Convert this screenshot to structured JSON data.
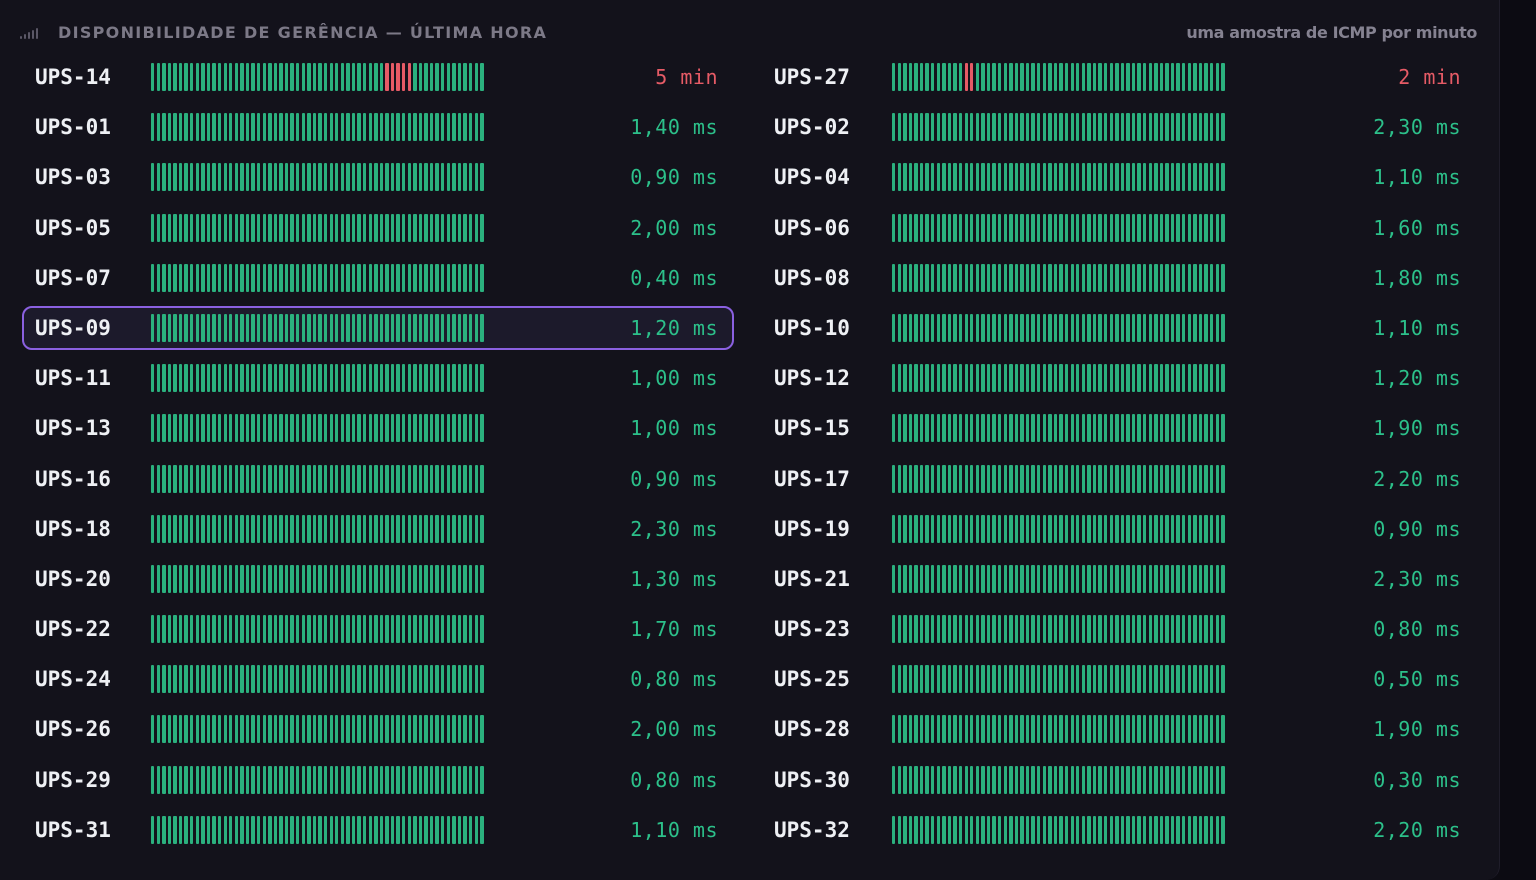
{
  "header": {
    "title": "DISPONIBILIDADE DE GERÊNCIA — ÚLTIMA HORA",
    "subtitle": "uma amostra de ICMP por minuto",
    "icon": "signal-bars-icon"
  },
  "colors": {
    "up": "#2bb07e",
    "down": "#e65b66",
    "selected_border": "#8a60e0"
  },
  "samples_per_row": 60,
  "selected": "UPS-09",
  "columns": [
    [
      {
        "name": "UPS-14",
        "value": "5 min",
        "status": "down",
        "down_samples": [
          42,
          43,
          44,
          45,
          46
        ]
      },
      {
        "name": "UPS-01",
        "value": "1,40 ms",
        "status": "up",
        "down_samples": []
      },
      {
        "name": "UPS-03",
        "value": "0,90 ms",
        "status": "up",
        "down_samples": []
      },
      {
        "name": "UPS-05",
        "value": "2,00 ms",
        "status": "up",
        "down_samples": []
      },
      {
        "name": "UPS-07",
        "value": "0,40 ms",
        "status": "up",
        "down_samples": []
      },
      {
        "name": "UPS-09",
        "value": "1,20 ms",
        "status": "up",
        "down_samples": []
      },
      {
        "name": "UPS-11",
        "value": "1,00 ms",
        "status": "up",
        "down_samples": []
      },
      {
        "name": "UPS-13",
        "value": "1,00 ms",
        "status": "up",
        "down_samples": []
      },
      {
        "name": "UPS-16",
        "value": "0,90 ms",
        "status": "up",
        "down_samples": []
      },
      {
        "name": "UPS-18",
        "value": "2,30 ms",
        "status": "up",
        "down_samples": []
      },
      {
        "name": "UPS-20",
        "value": "1,30 ms",
        "status": "up",
        "down_samples": []
      },
      {
        "name": "UPS-22",
        "value": "1,70 ms",
        "status": "up",
        "down_samples": []
      },
      {
        "name": "UPS-24",
        "value": "0,80 ms",
        "status": "up",
        "down_samples": []
      },
      {
        "name": "UPS-26",
        "value": "2,00 ms",
        "status": "up",
        "down_samples": []
      },
      {
        "name": "UPS-29",
        "value": "0,80 ms",
        "status": "up",
        "down_samples": []
      },
      {
        "name": "UPS-31",
        "value": "1,10 ms",
        "status": "up",
        "down_samples": []
      }
    ],
    [
      {
        "name": "UPS-27",
        "value": "2 min",
        "status": "down",
        "down_samples": [
          13,
          14
        ]
      },
      {
        "name": "UPS-02",
        "value": "2,30 ms",
        "status": "up",
        "down_samples": []
      },
      {
        "name": "UPS-04",
        "value": "1,10 ms",
        "status": "up",
        "down_samples": []
      },
      {
        "name": "UPS-06",
        "value": "1,60 ms",
        "status": "up",
        "down_samples": []
      },
      {
        "name": "UPS-08",
        "value": "1,80 ms",
        "status": "up",
        "down_samples": []
      },
      {
        "name": "UPS-10",
        "value": "1,10 ms",
        "status": "up",
        "down_samples": []
      },
      {
        "name": "UPS-12",
        "value": "1,20 ms",
        "status": "up",
        "down_samples": []
      },
      {
        "name": "UPS-15",
        "value": "1,90 ms",
        "status": "up",
        "down_samples": []
      },
      {
        "name": "UPS-17",
        "value": "2,20 ms",
        "status": "up",
        "down_samples": []
      },
      {
        "name": "UPS-19",
        "value": "0,90 ms",
        "status": "up",
        "down_samples": []
      },
      {
        "name": "UPS-21",
        "value": "2,30 ms",
        "status": "up",
        "down_samples": []
      },
      {
        "name": "UPS-23",
        "value": "0,80 ms",
        "status": "up",
        "down_samples": []
      },
      {
        "name": "UPS-25",
        "value": "0,50 ms",
        "status": "up",
        "down_samples": []
      },
      {
        "name": "UPS-28",
        "value": "1,90 ms",
        "status": "up",
        "down_samples": []
      },
      {
        "name": "UPS-30",
        "value": "0,30 ms",
        "status": "up",
        "down_samples": []
      },
      {
        "name": "UPS-32",
        "value": "2,20 ms",
        "status": "up",
        "down_samples": []
      }
    ]
  ]
}
